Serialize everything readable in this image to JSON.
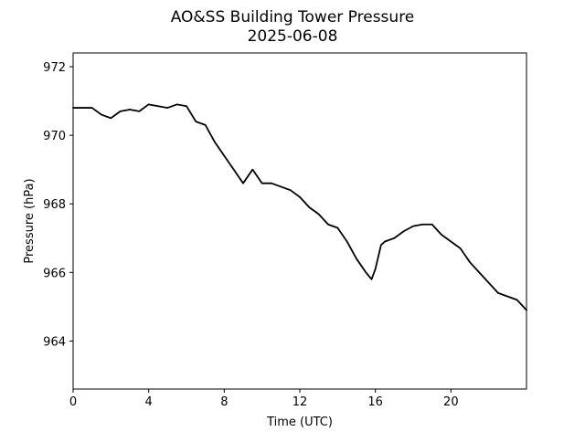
{
  "chart_data": {
    "type": "line",
    "title": "AO&SS Building Tower Pressure",
    "subtitle": "2025-06-08",
    "xlabel": "Time (UTC)",
    "ylabel": "Pressure (hPa)",
    "xlim": [
      0,
      24
    ],
    "ylim": [
      962.6,
      972.4
    ],
    "xticks": [
      0,
      4,
      8,
      12,
      16,
      20
    ],
    "yticks": [
      964,
      966,
      968,
      970,
      972
    ],
    "xtick_labels": [
      "0",
      "4",
      "8",
      "12",
      "16",
      "20"
    ],
    "ytick_labels": [
      "964",
      "966",
      "968",
      "970",
      "972"
    ],
    "grid": false,
    "legend": "none",
    "line_color": "#000000",
    "series": [
      {
        "x": [
          0,
          0.5,
          1,
          1.5,
          2,
          2.5,
          3,
          3.5,
          4,
          4.5,
          5,
          5.5,
          6,
          6.5,
          7,
          7.5,
          8,
          8.5,
          9,
          9.5,
          10,
          10.5,
          11,
          11.5,
          12,
          12.5,
          13,
          13.5,
          14,
          14.5,
          15,
          15.5,
          15.8,
          16,
          16.3,
          16.5,
          17,
          17.5,
          18,
          18.5,
          19,
          19.5,
          20,
          20.5,
          21,
          21.5,
          22,
          22.5,
          23,
          23.5,
          24
        ],
        "y": [
          970.8,
          970.8,
          970.8,
          970.6,
          970.5,
          970.7,
          970.75,
          970.7,
          970.9,
          970.85,
          970.8,
          970.9,
          970.85,
          970.4,
          970.3,
          969.8,
          969.4,
          969.0,
          968.6,
          969.0,
          968.6,
          968.6,
          968.5,
          968.4,
          968.2,
          967.9,
          967.7,
          967.4,
          967.3,
          966.9,
          966.4,
          966.0,
          965.8,
          966.1,
          966.8,
          966.9,
          967.0,
          967.2,
          967.35,
          967.4,
          967.4,
          967.1,
          966.9,
          966.7,
          966.3,
          966.0,
          965.7,
          965.4,
          965.3,
          965.2,
          964.9
        ]
      }
    ]
  }
}
